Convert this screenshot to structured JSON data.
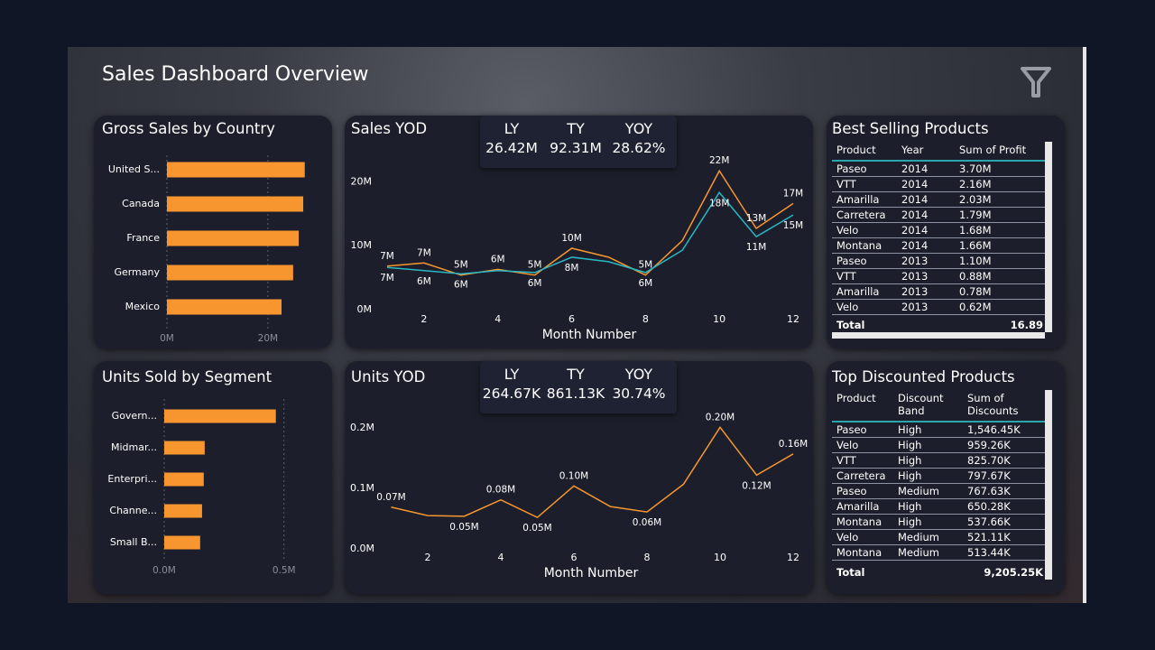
{
  "title": "Sales Dashboard Overview",
  "chart_data": [
    {
      "type": "bar",
      "orientation": "horizontal",
      "title": "Gross Sales by Country",
      "categories": [
        "United S...",
        "Canada",
        "France",
        "Germany",
        "Mexico"
      ],
      "values": [
        27.3,
        27.0,
        26.1,
        25.0,
        22.7
      ],
      "color": "#f7962e",
      "xlim": [
        0,
        28.6
      ],
      "xticks": [
        {
          "value": 0,
          "label": "0M"
        },
        {
          "value": 20,
          "label": "20M"
        }
      ],
      "grid": true
    },
    {
      "type": "line",
      "title": "Sales YOD",
      "xlabel": "Month Number",
      "x": [
        1,
        2,
        3,
        4,
        5,
        6,
        7,
        8,
        9,
        10,
        11,
        12
      ],
      "xlim": [
        1,
        12
      ],
      "xticks": [
        2,
        4,
        6,
        8,
        10,
        12
      ],
      "ylim": [
        0,
        23
      ],
      "yticks": [
        {
          "value": 0,
          "label": "0M"
        },
        {
          "value": 10,
          "label": "10M"
        },
        {
          "value": 20,
          "label": "20M"
        }
      ],
      "series": [
        {
          "color": "#f7962e",
          "values": [
            6.8,
            7.3,
            5.4,
            6.3,
            5.4,
            9.6,
            8.2,
            5.4,
            10.8,
            21.7,
            12.7,
            16.6
          ],
          "value_labels": [
            "7M",
            "7M",
            "5M",
            "6M",
            "5M",
            "10M",
            null,
            "5M",
            null,
            "22M",
            "13M",
            "17M"
          ]
        },
        {
          "color": "#2ab7c5",
          "values": [
            6.6,
            6.1,
            5.6,
            6.1,
            5.8,
            8.2,
            7.5,
            5.8,
            9.3,
            18.3,
            11.4,
            14.8
          ],
          "value_labels": [
            "7M",
            "6M",
            "6M",
            null,
            "6M",
            "8M",
            null,
            "6M",
            null,
            "18M",
            "11M",
            "15M"
          ]
        }
      ]
    },
    {
      "type": "bar",
      "orientation": "horizontal",
      "title": "Units Sold by Segment",
      "categories": [
        "Govern...",
        "Midmar...",
        "Enterpri...",
        "Channe...",
        "Small B..."
      ],
      "values": [
        0.466,
        0.169,
        0.165,
        0.158,
        0.15
      ],
      "color": "#f7962e",
      "xlim": [
        0,
        0.55
      ],
      "xticks": [
        {
          "value": 0,
          "label": "0.0M"
        },
        {
          "value": 0.5,
          "label": "0.5M"
        }
      ],
      "grid": true
    },
    {
      "type": "line",
      "title": "Units YOD",
      "xlabel": "Month Number",
      "x": [
        1,
        2,
        3,
        4,
        5,
        6,
        7,
        8,
        9,
        10,
        11,
        12
      ],
      "xlim": [
        1,
        12
      ],
      "xticks": [
        2,
        4,
        6,
        8,
        10,
        12
      ],
      "ylim": [
        0,
        0.21
      ],
      "yticks": [
        {
          "value": 0,
          "label": "0.0M"
        },
        {
          "value": 0.1,
          "label": "0.1M"
        },
        {
          "value": 0.2,
          "label": "0.2M"
        }
      ],
      "series": [
        {
          "color": "#f7962e",
          "values": [
            0.069,
            0.055,
            0.054,
            0.081,
            0.052,
            0.104,
            0.07,
            0.061,
            0.107,
            0.201,
            0.122,
            0.157
          ],
          "value_labels": [
            "0.07M",
            null,
            "0.05M",
            "0.08M",
            "0.05M",
            "0.10M",
            null,
            "0.06M",
            null,
            "0.20M",
            "0.12M",
            "0.16M"
          ]
        }
      ]
    }
  ],
  "kpis": [
    [
      {
        "label": "LY",
        "value": "26.42M"
      },
      {
        "label": "TY",
        "value": "92.31M"
      },
      {
        "label": "YOY",
        "value": "28.62%"
      }
    ],
    [
      {
        "label": "LY",
        "value": "264.67K"
      },
      {
        "label": "TY",
        "value": "861.13K"
      },
      {
        "label": "YOY",
        "value": "30.74%"
      }
    ]
  ],
  "tables": [
    {
      "title": "Best Selling Products",
      "columns": [
        "Product",
        "Year",
        "Sum of Profit"
      ],
      "rows": [
        [
          "Paseo",
          "2014",
          "3.70M"
        ],
        [
          "VTT",
          "2014",
          "2.16M"
        ],
        [
          "Amarilla",
          "2014",
          "2.03M"
        ],
        [
          "Carretera",
          "2014",
          "1.79M"
        ],
        [
          "Velo",
          "2014",
          "1.68M"
        ],
        [
          "Montana",
          "2014",
          "1.66M"
        ],
        [
          "Paseo",
          "2013",
          "1.10M"
        ],
        [
          "VTT",
          "2013",
          "0.88M"
        ],
        [
          "Amarilla",
          "2013",
          "0.78M"
        ],
        [
          "Velo",
          "2013",
          "0.62M"
        ]
      ],
      "total": [
        "Total",
        "16.89"
      ]
    },
    {
      "title": "Top Discounted Products",
      "columns": [
        "Product",
        "Discount Band",
        "Sum of Discounts"
      ],
      "rows": [
        [
          "Paseo",
          "High",
          "1,546.45K"
        ],
        [
          "Velo",
          "High",
          "959.26K"
        ],
        [
          "VTT",
          "High",
          "825.70K"
        ],
        [
          "Carretera",
          "High",
          "797.67K"
        ],
        [
          "Paseo",
          "Medium",
          "767.63K"
        ],
        [
          "Amarilla",
          "High",
          "650.28K"
        ],
        [
          "Montana",
          "High",
          "537.66K"
        ],
        [
          "Velo",
          "Medium",
          "521.11K"
        ],
        [
          "Montana",
          "Medium",
          "513.44K"
        ]
      ],
      "total": [
        "Total",
        "9,205.25K"
      ]
    }
  ]
}
